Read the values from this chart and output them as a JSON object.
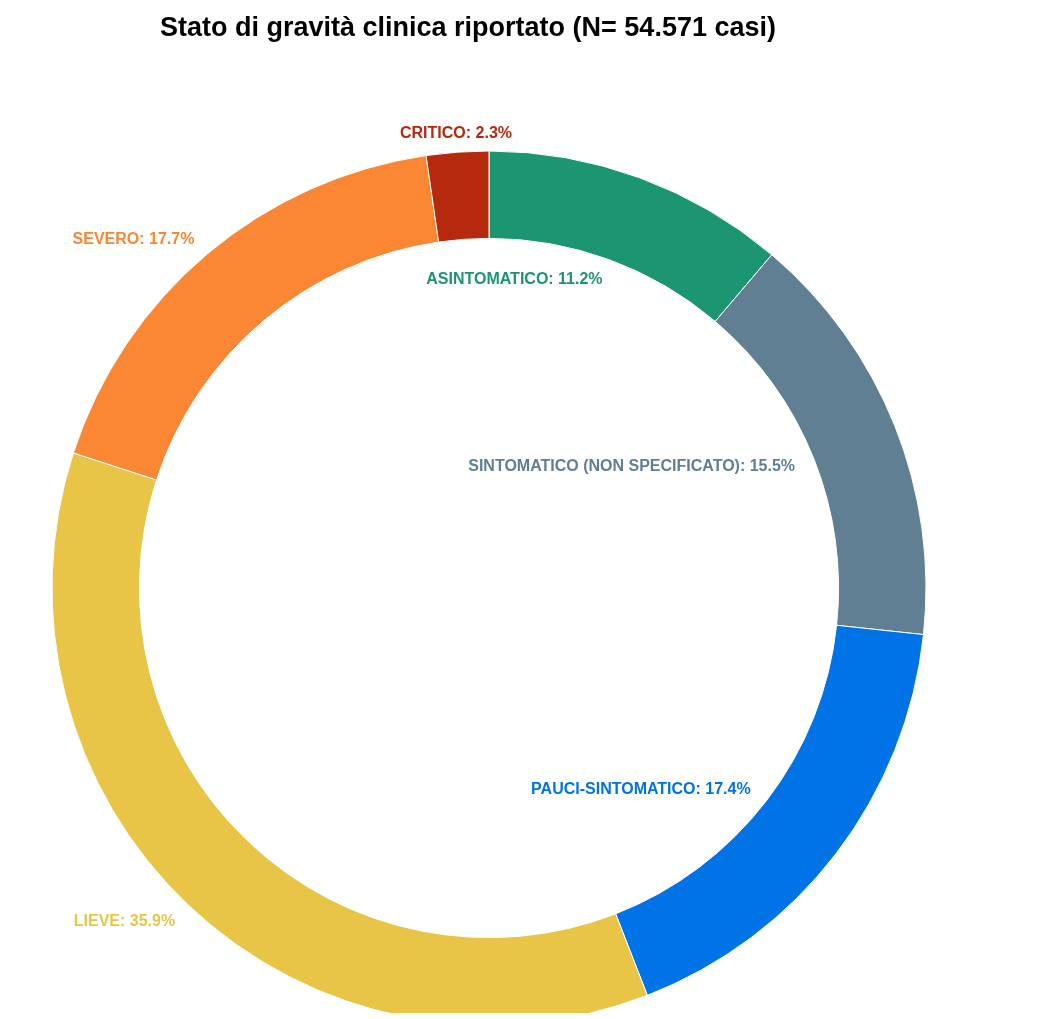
{
  "chart_data": {
    "type": "donut",
    "title": "Stato di gravità clinica riportato (N= 54.571 casi)",
    "categories": [
      "ASINTOMATICO",
      "SINTOMATICO (NON SPECIFICATO)",
      "PAUCI-SINTOMATICO",
      "LIEVE",
      "SEVERO",
      "CRITICO"
    ],
    "values": [
      11.2,
      15.5,
      17.4,
      35.9,
      17.7,
      2.3
    ],
    "value_labels": [
      ": 11.2%",
      ": 15.5%",
      ": 17.4%",
      ": 35.9%",
      ": 17.7%",
      ": 2.3%"
    ],
    "colors": [
      "#1b9670",
      "#607f93",
      "#0073e6",
      "#e8c547",
      "#fb8735",
      "#b5290d"
    ]
  }
}
